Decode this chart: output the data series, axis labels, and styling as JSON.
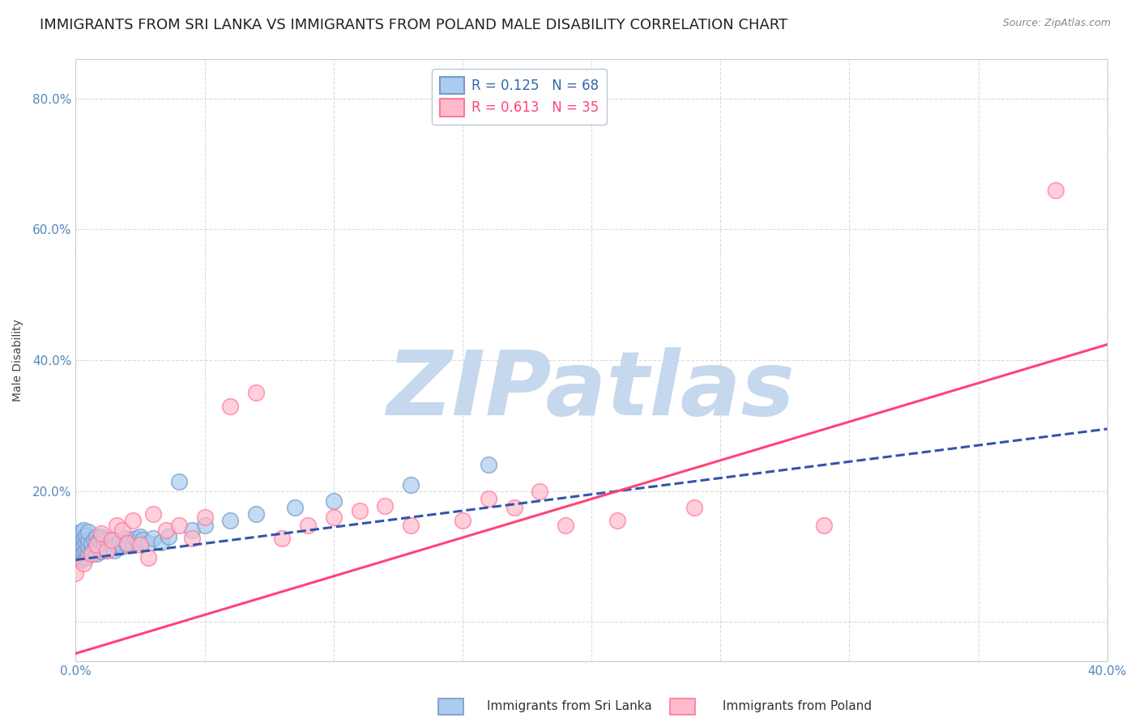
{
  "title": "IMMIGRANTS FROM SRI LANKA VS IMMIGRANTS FROM POLAND MALE DISABILITY CORRELATION CHART",
  "source": "Source: ZipAtlas.com",
  "ylabel": "Male Disability",
  "xlim": [
    0.0,
    0.4
  ],
  "ylim": [
    -0.06,
    0.86
  ],
  "xticks": [
    0.0,
    0.05,
    0.1,
    0.15,
    0.2,
    0.25,
    0.3,
    0.35,
    0.4
  ],
  "yticks": [
    0.0,
    0.2,
    0.4,
    0.6,
    0.8
  ],
  "xtick_labels": [
    "0.0%",
    "",
    "",
    "",
    "",
    "",
    "",
    "",
    "40.0%"
  ],
  "ytick_labels": [
    "",
    "20.0%",
    "40.0%",
    "60.0%",
    "80.0%"
  ],
  "series": [
    {
      "name": "Immigrants from Sri Lanka",
      "R": 0.125,
      "N": 68,
      "marker_facecolor": "#AACCEE",
      "marker_edgecolor": "#7799CC",
      "trend_color": "#3355AA",
      "trend_style": "--",
      "trend_intercept": 0.095,
      "trend_slope": 0.5,
      "x": [
        0.0,
        0.0,
        0.001,
        0.001,
        0.001,
        0.001,
        0.002,
        0.002,
        0.002,
        0.002,
        0.002,
        0.003,
        0.003,
        0.003,
        0.003,
        0.003,
        0.004,
        0.004,
        0.004,
        0.004,
        0.005,
        0.005,
        0.005,
        0.005,
        0.006,
        0.006,
        0.007,
        0.007,
        0.008,
        0.008,
        0.008,
        0.009,
        0.009,
        0.01,
        0.01,
        0.01,
        0.011,
        0.011,
        0.012,
        0.012,
        0.013,
        0.014,
        0.015,
        0.015,
        0.016,
        0.017,
        0.018,
        0.019,
        0.02,
        0.021,
        0.022,
        0.023,
        0.024,
        0.025,
        0.026,
        0.028,
        0.03,
        0.033,
        0.036,
        0.04,
        0.045,
        0.05,
        0.06,
        0.07,
        0.085,
        0.1,
        0.13,
        0.16
      ],
      "y": [
        0.1,
        0.115,
        0.108,
        0.118,
        0.125,
        0.135,
        0.095,
        0.11,
        0.118,
        0.128,
        0.138,
        0.1,
        0.108,
        0.118,
        0.128,
        0.14,
        0.098,
        0.11,
        0.12,
        0.132,
        0.105,
        0.115,
        0.125,
        0.138,
        0.108,
        0.12,
        0.11,
        0.125,
        0.105,
        0.118,
        0.13,
        0.112,
        0.125,
        0.108,
        0.118,
        0.13,
        0.115,
        0.128,
        0.11,
        0.125,
        0.12,
        0.115,
        0.11,
        0.125,
        0.118,
        0.122,
        0.115,
        0.128,
        0.118,
        0.125,
        0.12,
        0.128,
        0.122,
        0.13,
        0.125,
        0.12,
        0.128,
        0.122,
        0.13,
        0.215,
        0.14,
        0.148,
        0.155,
        0.165,
        0.175,
        0.185,
        0.21,
        0.24
      ]
    },
    {
      "name": "Immigrants from Poland",
      "R": 0.613,
      "N": 35,
      "marker_facecolor": "#FFBBCC",
      "marker_edgecolor": "#FF7799",
      "trend_color": "#FF4477",
      "trend_style": "-",
      "trend_intercept": -0.048,
      "trend_slope": 1.18,
      "x": [
        0.0,
        0.003,
        0.006,
        0.008,
        0.01,
        0.012,
        0.014,
        0.016,
        0.018,
        0.02,
        0.022,
        0.025,
        0.028,
        0.03,
        0.035,
        0.04,
        0.045,
        0.05,
        0.06,
        0.07,
        0.08,
        0.09,
        0.1,
        0.11,
        0.12,
        0.13,
        0.15,
        0.16,
        0.17,
        0.18,
        0.19,
        0.21,
        0.24,
        0.29,
        0.38
      ],
      "y": [
        0.075,
        0.09,
        0.105,
        0.118,
        0.135,
        0.11,
        0.125,
        0.148,
        0.14,
        0.12,
        0.155,
        0.118,
        0.098,
        0.165,
        0.14,
        0.148,
        0.128,
        0.16,
        0.33,
        0.35,
        0.128,
        0.148,
        0.16,
        0.17,
        0.178,
        0.148,
        0.155,
        0.188,
        0.175,
        0.2,
        0.148,
        0.155,
        0.175,
        0.148,
        0.66
      ]
    }
  ],
  "legend_border_color": "#AABBCC",
  "watermark_text": "ZIPatlas",
  "watermark_color": "#C5D8ED",
  "background_color": "#FFFFFF",
  "grid_color": "#CCCCCC",
  "title_fontsize": 13,
  "axis_label_fontsize": 10,
  "tick_label_color_x": "#5588BB",
  "tick_label_color_y": "#5588BB",
  "source_fontsize": 9
}
